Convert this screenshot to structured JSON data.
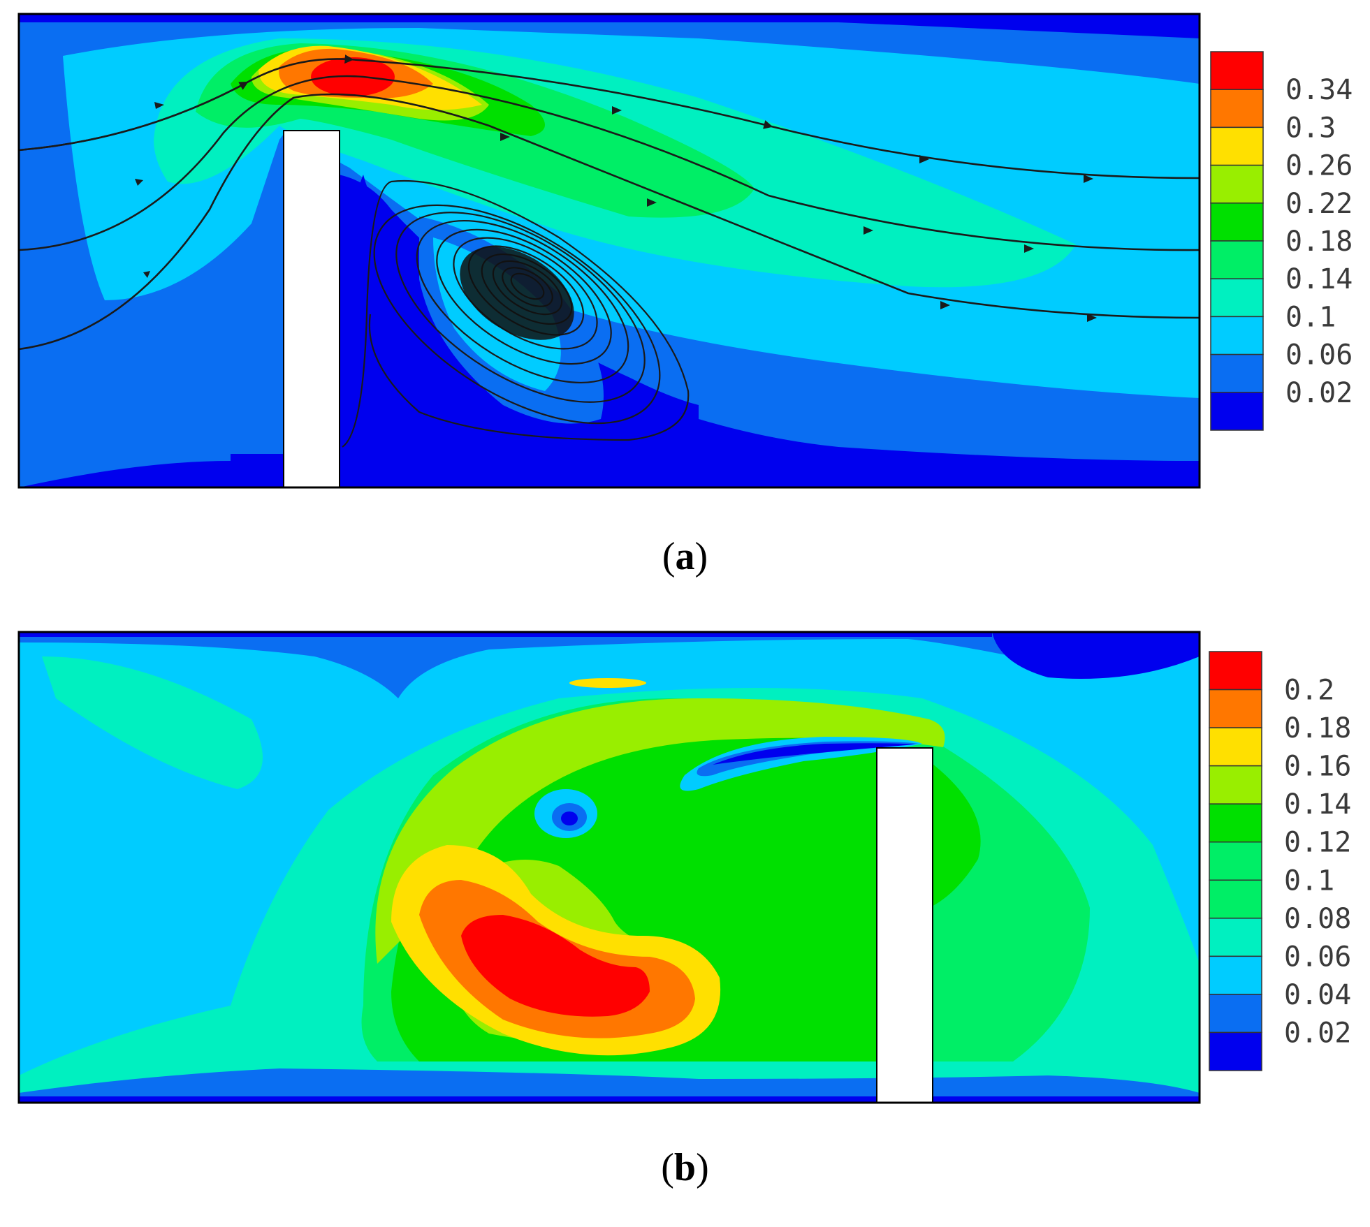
{
  "colors": {
    "levels": [
      "#0000ee",
      "#0a6ef2",
      "#00ccff",
      "#00f0c0",
      "#00ee66",
      "#00e000",
      "#99ee00",
      "#ffe000",
      "#ff7700",
      "#ff0000"
    ],
    "obstacle": "#ffffff",
    "frame": "#000000",
    "streamline": "#1a1a1a"
  },
  "chart_data": [
    {
      "type": "heatmap",
      "panel_label": "a",
      "colorbar": {
        "tick_labels": [
          "0.34",
          "0.3",
          "0.26",
          "0.22",
          "0.18",
          "0.14",
          "0.1",
          "0.06",
          "0.02"
        ],
        "levels": [
          0.02,
          0.06,
          0.1,
          0.14,
          0.18,
          0.22,
          0.26,
          0.3,
          0.34
        ],
        "range": [
          0.0,
          0.38
        ]
      },
      "features": {
        "obstacle": "white vertical block rising from the bottom wall, left of center",
        "streamlines": "flow passes over the block left to right; a closed recirculation vortex sits downstream of the block",
        "maximum_region": "above the block top, value ~0.34"
      }
    },
    {
      "type": "heatmap",
      "panel_label": "b",
      "colorbar": {
        "tick_labels": [
          "0.2",
          "0.18",
          "0.16",
          "0.14",
          "0.12",
          "0.1",
          "0.08",
          "0.06",
          "0.04",
          "0.02"
        ],
        "levels": [
          0.02,
          0.04,
          0.06,
          0.08,
          0.1,
          0.12,
          0.14,
          0.16,
          0.18,
          0.2
        ],
        "range": [
          0.0,
          0.22
        ]
      },
      "features": {
        "obstacle": "white vertical block rising from the bottom wall, right of center",
        "maximum_region": "crescent-shaped vortex core in the lower-left center, value ~0.2",
        "minimum_region": "thin layers along top and bottom walls, value ~0.02"
      }
    }
  ],
  "captions": {
    "a": "a",
    "b": "b"
  }
}
